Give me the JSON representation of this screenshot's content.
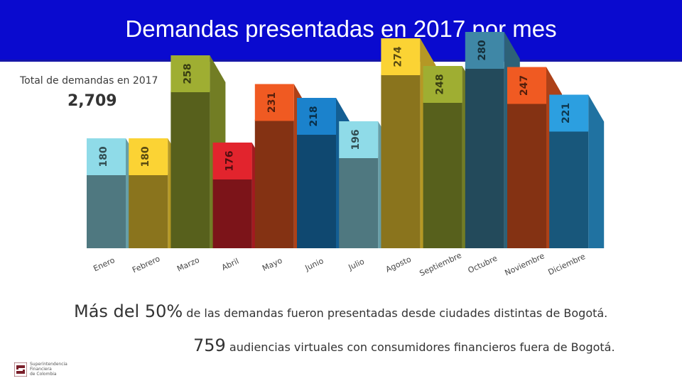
{
  "header": {
    "title": "Demandas presentadas en 2017 por mes",
    "bg_color": "#0a0acf"
  },
  "summary": {
    "total_label": "Total de demandas en 2017",
    "total_value": "2,709"
  },
  "notes": {
    "line1_big": "Más del 50%",
    "line1_rest": "de las demandas fueron presentadas desde ciudades distintas de Bogotá.",
    "line2_big": "759",
    "line2_rest": "audiencias virtuales con consumidores financieros fuera de Bogotá."
  },
  "logo": {
    "icon": "superintendencia-logo-icon",
    "line1": "Superintendencia",
    "line2": "Financiera",
    "line3": "de Colombia"
  },
  "chart_data": {
    "type": "bar",
    "title": "Demandas presentadas en 2017 por mes",
    "xlabel": "",
    "ylabel": "",
    "categories": [
      "Enero",
      "Febrero",
      "Marzo",
      "Abril",
      "Mayo",
      "Junio",
      "Julio",
      "Agosto",
      "Septiembre",
      "Octubre",
      "Noviembre",
      "Diciembre"
    ],
    "values": [
      180,
      180,
      258,
      176,
      231,
      218,
      196,
      274,
      248,
      280,
      247,
      221
    ],
    "colors": [
      "#8fdbe8",
      "#fbd334",
      "#9fae32",
      "#e2242d",
      "#f05a22",
      "#1b82cc",
      "#8fdbe8",
      "#fbd334",
      "#9fae32",
      "#3f87a6",
      "#f05a22",
      "#2c9fe0"
    ],
    "ylim": [
      0,
      300
    ]
  }
}
